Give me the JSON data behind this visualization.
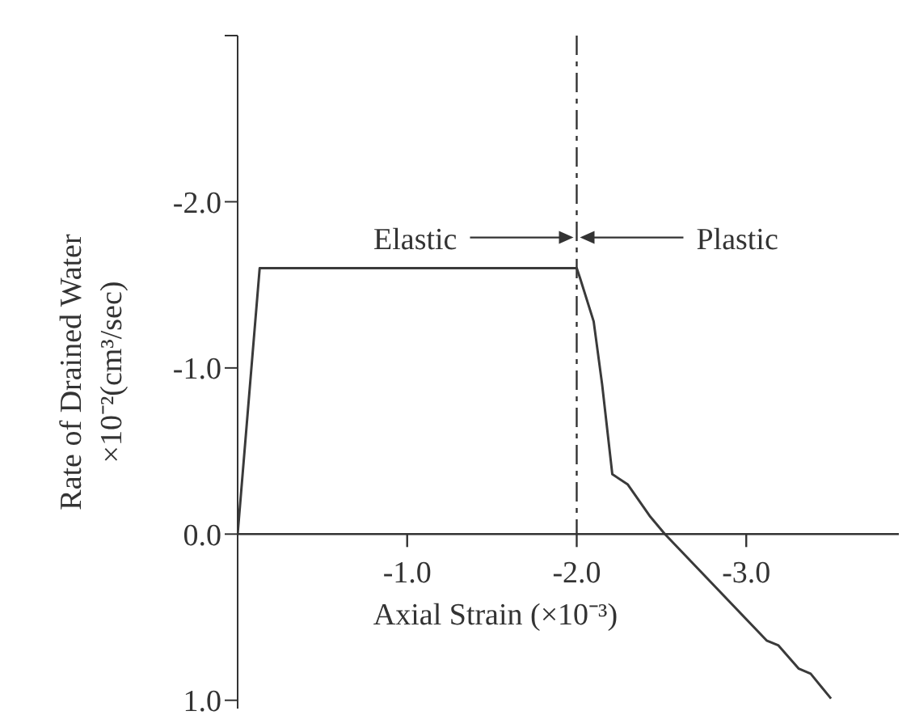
{
  "chart_data": {
    "type": "line",
    "xlabel": "Axial Strain (×10⁻³)",
    "ylabel": "Rate of Drained Water ×10⁻²(cm³/sec)",
    "annotations": [
      "Elastic",
      "Plastic"
    ],
    "series": [
      {
        "color": "#3a3a3a",
        "x": [
          0,
          -0.13,
          -2.0,
          -2.02,
          -2.1,
          -2.15,
          -2.21,
          -2.3,
          -2.43,
          -2.52,
          -3.12,
          -3.19,
          -3.31,
          -3.38,
          -3.5
        ],
        "values": [
          0,
          -1.6,
          -1.6,
          -1.54,
          -1.28,
          -0.9,
          -0.36,
          -0.3,
          -0.11,
          0,
          0.64,
          0.67,
          0.81,
          0.84,
          0.99
        ]
      }
    ],
    "xlim": [
      0,
      -3.9
    ],
    "ylim": [
      1.05,
      -3.0
    ],
    "xticks": [
      {
        "value": -1,
        "label": "-1.0"
      },
      {
        "value": -2,
        "label": "-2.0"
      },
      {
        "value": -3,
        "label": "-3.0"
      }
    ],
    "yticks": [
      {
        "value": -3,
        "label": null
      },
      {
        "value": -2,
        "label": "-2.0"
      },
      {
        "value": -1,
        "label": "-1.0"
      },
      {
        "value": 0,
        "label": "0.0"
      },
      {
        "value": 1,
        "label": "1.0"
      }
    ],
    "ref_lines": [
      {
        "axis": "x",
        "value": -2,
        "line_style": "dashed"
      }
    ],
    "marker": "none",
    "line_style": "solid"
  }
}
